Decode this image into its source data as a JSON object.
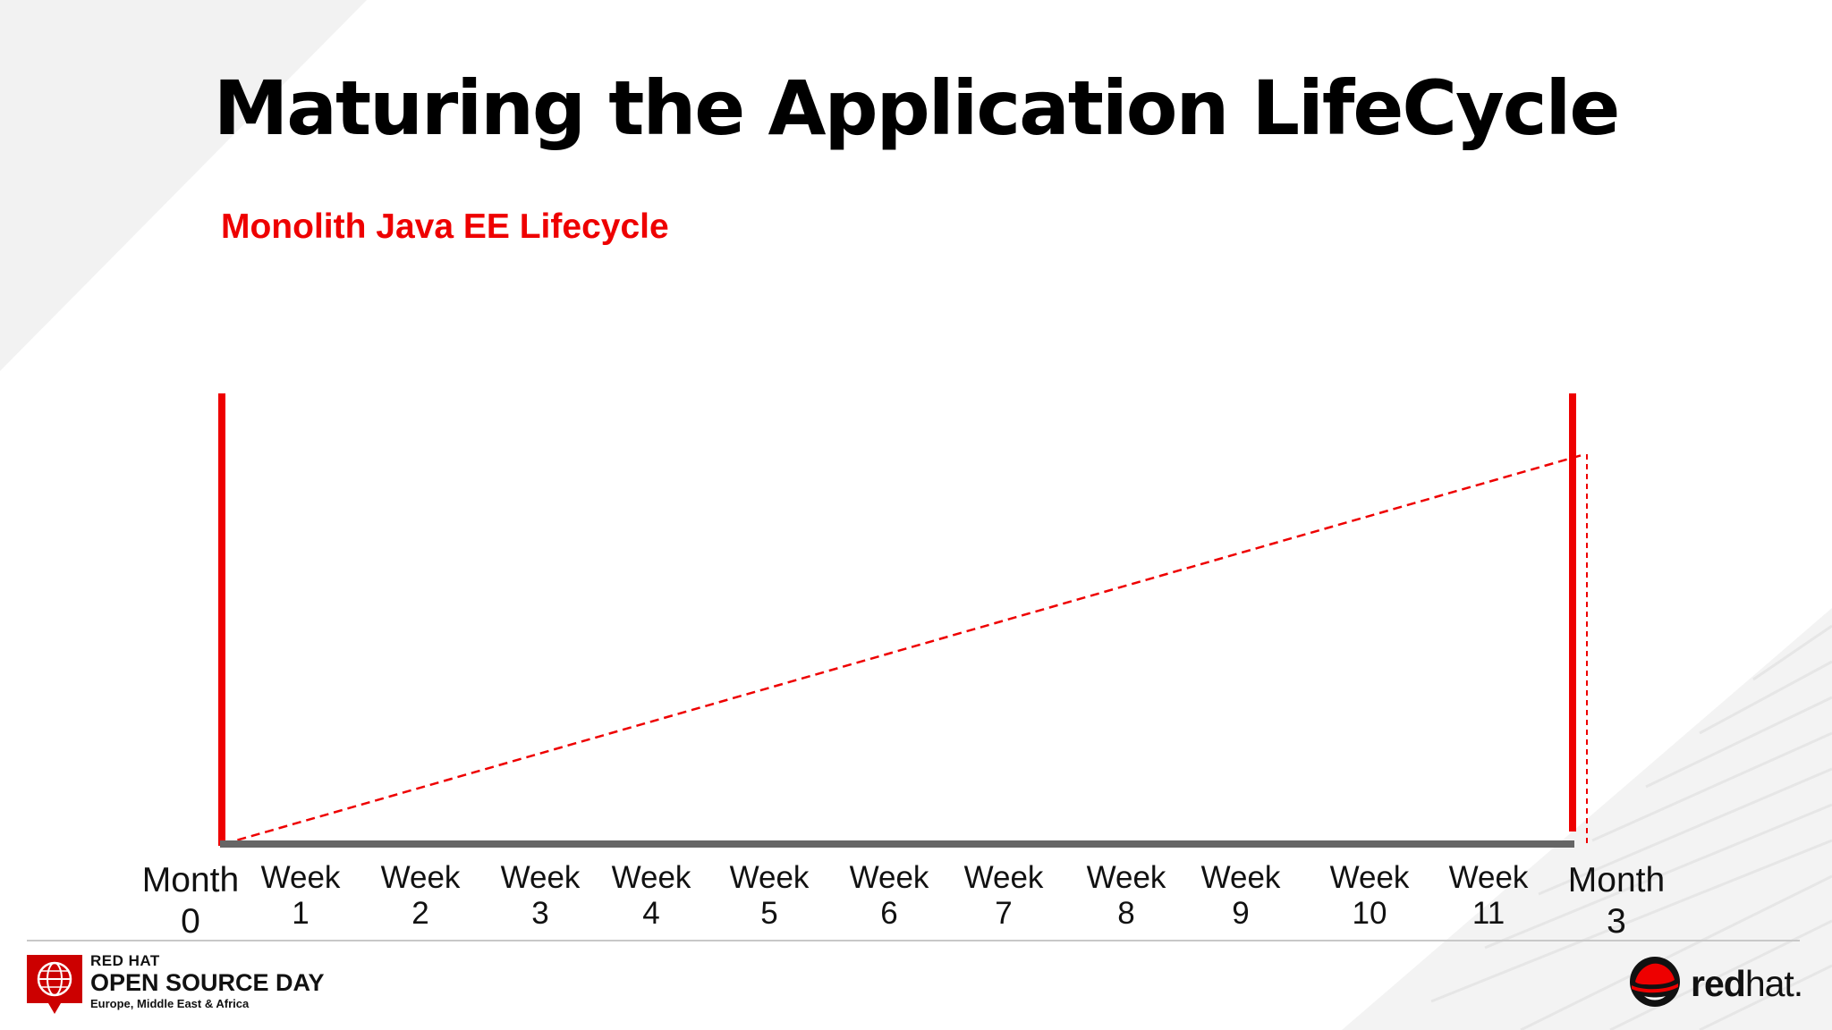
{
  "slide": {
    "title": "Maturing the Application LifeCycle",
    "subtitle": "Monolith Java EE Lifecycle"
  },
  "timeline": {
    "ticks": [
      {
        "line1": "Month",
        "line2": "0",
        "kind": "month"
      },
      {
        "line1": "Week",
        "line2": "1",
        "kind": "week"
      },
      {
        "line1": "Week",
        "line2": "2",
        "kind": "week"
      },
      {
        "line1": "Week",
        "line2": "3",
        "kind": "week"
      },
      {
        "line1": "Week",
        "line2": "4",
        "kind": "week"
      },
      {
        "line1": "Week",
        "line2": "5",
        "kind": "week"
      },
      {
        "line1": "Week",
        "line2": "6",
        "kind": "week"
      },
      {
        "line1": "Week",
        "line2": "7",
        "kind": "week"
      },
      {
        "line1": "Week",
        "line2": "8",
        "kind": "week"
      },
      {
        "line1": "Week",
        "line2": "9",
        "kind": "week"
      },
      {
        "line1": "Week",
        "line2": "10",
        "kind": "week"
      },
      {
        "line1": "Week",
        "line2": "11",
        "kind": "week"
      },
      {
        "line1": "Month",
        "line2": "3",
        "kind": "month"
      }
    ],
    "colors": {
      "accent": "#ee0000",
      "axis": "#666666"
    }
  },
  "footer": {
    "event_brand": "RED HAT",
    "event_name": "OPEN SOURCE DAY",
    "event_region": "Europe, Middle East & Africa",
    "logo_word_bold": "red",
    "logo_word_light": "hat."
  }
}
